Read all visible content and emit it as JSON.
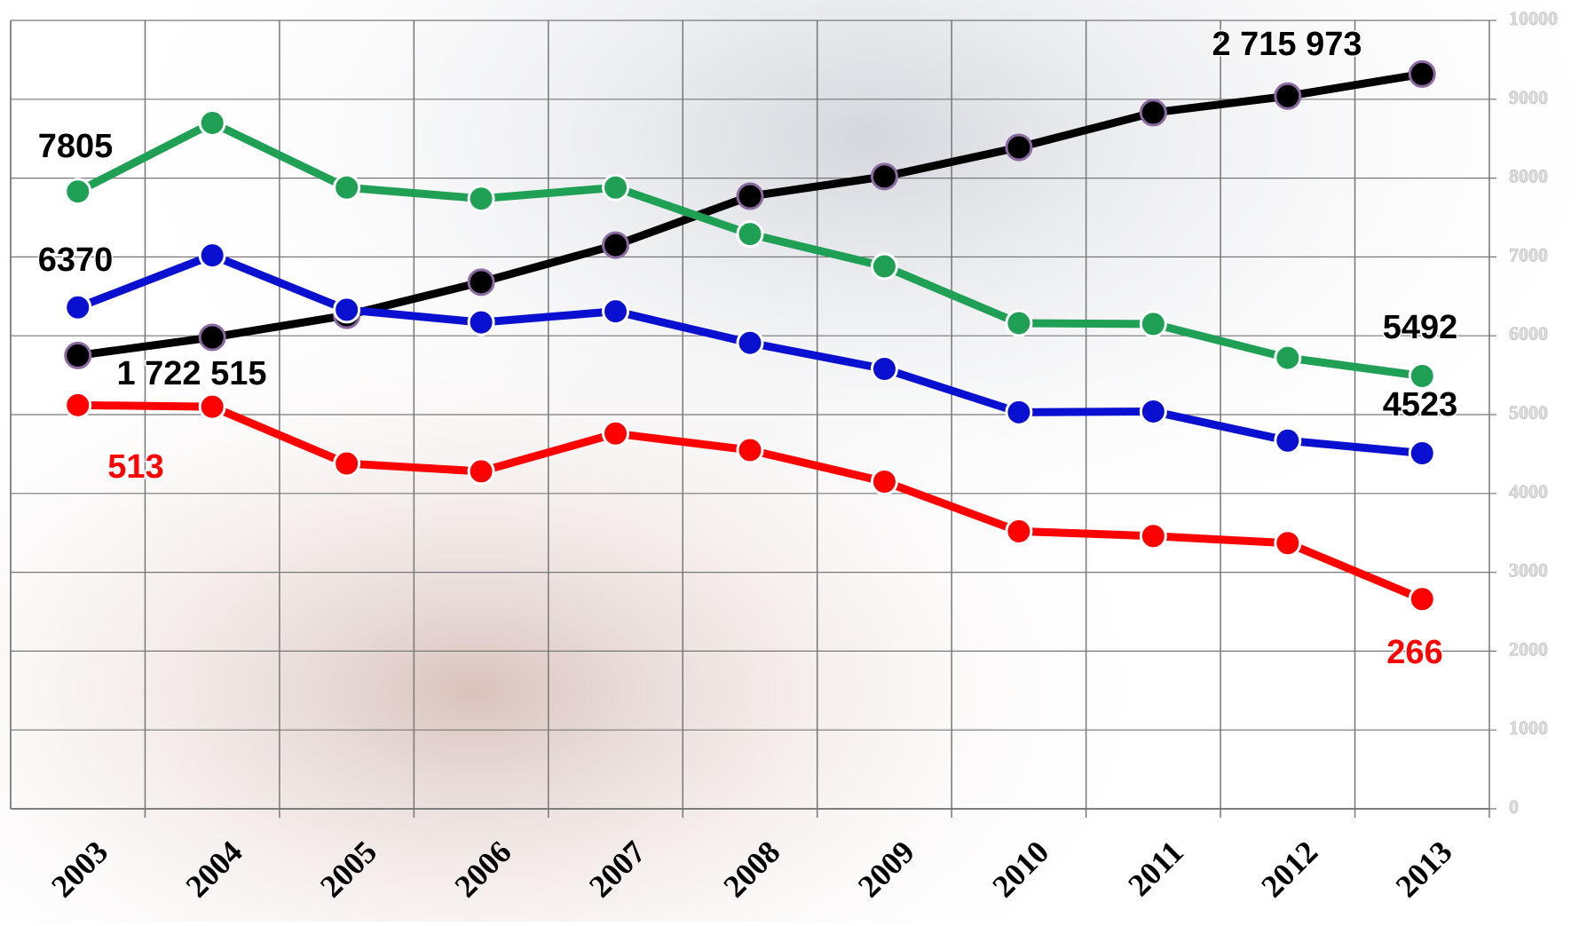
{
  "chart_data": {
    "type": "line",
    "categories": [
      "2003",
      "2004",
      "2005",
      "2006",
      "2007",
      "2008",
      "2009",
      "2010",
      "2011",
      "2012",
      "2013"
    ],
    "series": [
      {
        "color": "#000000",
        "values": [
          5750,
          5980,
          6260,
          6680,
          7150,
          7770,
          8020,
          8390,
          8830,
          9040,
          9320
        ]
      },
      {
        "color": "#1fa055",
        "values": [
          7830,
          8700,
          7880,
          7740,
          7880,
          7290,
          6880,
          6160,
          6150,
          5720,
          5490
        ]
      },
      {
        "color": "#0a10d0",
        "values": [
          6360,
          7020,
          6330,
          6170,
          6310,
          5910,
          5580,
          5030,
          5040,
          4670,
          4510
        ]
      },
      {
        "color": "#ff0000",
        "values": [
          5120,
          5100,
          4380,
          4280,
          4760,
          4550,
          4150,
          3520,
          3460,
          3370,
          2660
        ]
      }
    ],
    "annotations": [
      {
        "text": "7805",
        "color": "#000000"
      },
      {
        "text": "6370",
        "color": "#000000"
      },
      {
        "text": "1 722 515",
        "color": "#000000"
      },
      {
        "text": "513",
        "color": "#ff0000"
      },
      {
        "text": "2 715 973",
        "color": "#000000"
      },
      {
        "text": "5492",
        "color": "#000000"
      },
      {
        "text": "4523",
        "color": "#000000"
      },
      {
        "text": "266",
        "color": "#ff0000"
      }
    ],
    "ylim": [
      0,
      10000
    ],
    "yticks": [
      0,
      1000,
      2000,
      3000,
      4000,
      5000,
      6000,
      7000,
      8000,
      9000,
      10000
    ],
    "grid": true
  }
}
